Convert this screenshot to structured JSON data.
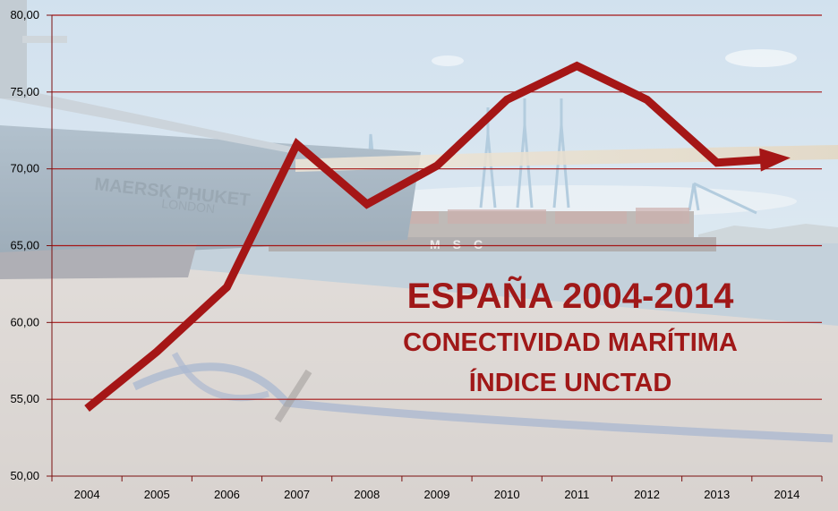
{
  "chart_data": {
    "type": "line",
    "title_lines": [
      "ESPAÑA 2004-2014",
      "CONECTIVIDAD MARÍTIMA",
      "ÍNDICE UNCTAD"
    ],
    "x": [
      "2004",
      "2005",
      "2006",
      "2007",
      "2008",
      "2009",
      "2010",
      "2011",
      "2012",
      "2013",
      "2014"
    ],
    "series": [
      {
        "values": [
          54.4,
          58.1,
          62.3,
          71.6,
          67.7,
          70.2,
          74.5,
          76.7,
          74.5,
          70.4,
          70.7
        ]
      }
    ],
    "yticks": [
      "50,00",
      "55,00",
      "60,00",
      "65,00",
      "70,00",
      "75,00",
      "80,00"
    ],
    "ylim": [
      50,
      80
    ],
    "grid": true,
    "line_color": "#a51616",
    "grid_color": "#a51616",
    "title_color": "#a01818"
  }
}
